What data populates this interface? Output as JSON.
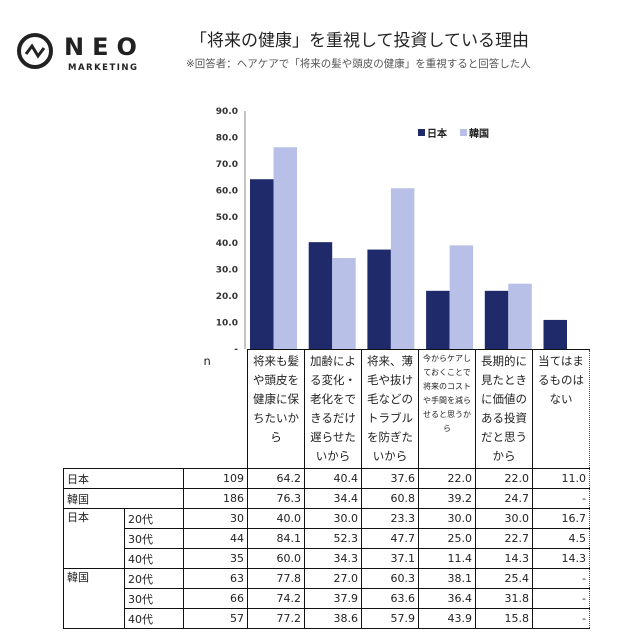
{
  "logo": {
    "name": "NEO",
    "sub": "MARKETING"
  },
  "title": "「将来の健康」を重視して投資している理由",
  "subtitle": "※回答者：ヘアケアで「将来の髪や頭皮の健康」を重視すると回答した人",
  "colors": {
    "japan": "#1f2a6b",
    "korea": "#b8c0e8"
  },
  "chart_data": {
    "type": "bar",
    "categories": [
      "将来も髪や頭皮を健康に保ちたいから",
      "加齢による変化・老化をできるだけ遅らせたいから",
      "将来、薄毛や抜け毛などのトラブルを防ぎたいから",
      "今からケアしておくことで将来のコストや手間を減らせると思うから",
      "長期的に見たときに価値のある投資だと思うから",
      "当てはまるものはない"
    ],
    "series": [
      {
        "name": "日本",
        "values": [
          64.2,
          40.4,
          37.6,
          22.0,
          22.0,
          11.0
        ]
      },
      {
        "name": "韓国",
        "values": [
          76.3,
          34.4,
          60.8,
          39.2,
          24.7,
          null
        ]
      }
    ],
    "ylim": [
      0,
      90
    ],
    "yticks": [
      "0",
      "10.0",
      "20.0",
      "30.0",
      "40.0",
      "50.0",
      "60.0",
      "70.0",
      "80.0",
      "90.0"
    ],
    "legend": "top-right",
    "grid": false
  },
  "table": {
    "n_label": "n",
    "rows": [
      {
        "g": "日本",
        "a": "",
        "n": "109",
        "v": [
          "64.2",
          "40.4",
          "37.6",
          "22.0",
          "22.0",
          "11.0"
        ]
      },
      {
        "g": "韓国",
        "a": "",
        "n": "186",
        "v": [
          "76.3",
          "34.4",
          "60.8",
          "39.2",
          "24.7",
          "-"
        ]
      },
      {
        "g": "日本",
        "a": "20代",
        "n": "30",
        "v": [
          "40.0",
          "30.0",
          "23.3",
          "30.0",
          "30.0",
          "16.7"
        ]
      },
      {
        "g": "",
        "a": "30代",
        "n": "44",
        "v": [
          "84.1",
          "52.3",
          "47.7",
          "25.0",
          "22.7",
          "4.5"
        ]
      },
      {
        "g": "",
        "a": "40代",
        "n": "35",
        "v": [
          "60.0",
          "34.3",
          "37.1",
          "11.4",
          "14.3",
          "14.3"
        ]
      },
      {
        "g": "韓国",
        "a": "20代",
        "n": "63",
        "v": [
          "77.8",
          "27.0",
          "60.3",
          "38.1",
          "25.4",
          "-"
        ]
      },
      {
        "g": "",
        "a": "30代",
        "n": "66",
        "v": [
          "74.2",
          "37.9",
          "63.6",
          "36.4",
          "31.8",
          "-"
        ]
      },
      {
        "g": "",
        "a": "40代",
        "n": "57",
        "v": [
          "77.2",
          "38.6",
          "57.9",
          "43.9",
          "15.8",
          "-"
        ]
      }
    ]
  }
}
